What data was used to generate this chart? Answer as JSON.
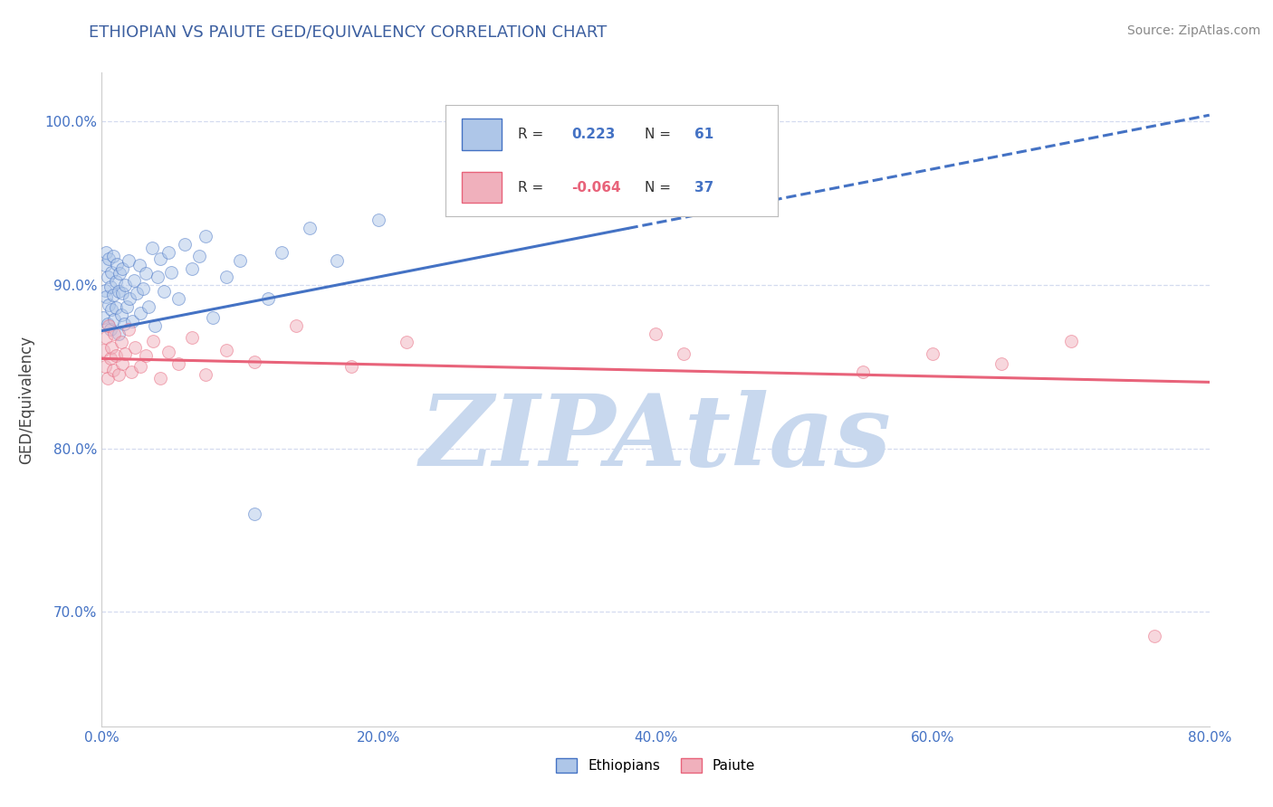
{
  "title": "ETHIOPIAN VS PAIUTE GED/EQUIVALENCY CORRELATION CHART",
  "source_text": "Source: ZipAtlas.com",
  "xlabel": "",
  "ylabel": "GED/Equivalency",
  "xlim": [
    0.0,
    0.8
  ],
  "ylim": [
    0.63,
    1.03
  ],
  "yticks": [
    0.7,
    0.8,
    0.9,
    1.0
  ],
  "ytick_labels": [
    "70.0%",
    "80.0%",
    "90.0%",
    "100.0%"
  ],
  "xticks": [
    0.0,
    0.2,
    0.4,
    0.6,
    0.8
  ],
  "xtick_labels": [
    "0.0%",
    "20.0%",
    "40.0%",
    "60.0%",
    "80.0%"
  ],
  "title_color": "#3c5fa0",
  "title_fontsize": 13,
  "axis_color": "#4472c4",
  "watermark_text": "ZIPAtlas",
  "watermark_color": "#c8d8ee",
  "legend_r_ethiopian": "0.223",
  "legend_n_ethiopian": "61",
  "legend_r_paiute": "-0.064",
  "legend_n_paiute": "37",
  "blue_color": "#4472c4",
  "pink_color": "#e8637a",
  "blue_fill_color": "#aec6e8",
  "pink_fill_color": "#f0b0bc",
  "background_color": "#ffffff",
  "grid_color": "#d0d8ee",
  "scatter_size": 100,
  "scatter_alpha": 0.5,
  "line_width": 2.2,
  "blue_line_intercept": 0.872,
  "blue_line_slope": 0.165,
  "pink_line_intercept": 0.855,
  "pink_line_slope": -0.018,
  "ethiopian_x": [
    0.001,
    0.002,
    0.002,
    0.003,
    0.003,
    0.004,
    0.004,
    0.005,
    0.005,
    0.006,
    0.006,
    0.007,
    0.007,
    0.008,
    0.008,
    0.009,
    0.01,
    0.01,
    0.011,
    0.012,
    0.012,
    0.013,
    0.014,
    0.015,
    0.015,
    0.016,
    0.017,
    0.018,
    0.019,
    0.02,
    0.022,
    0.023,
    0.025,
    0.027,
    0.028,
    0.03,
    0.032,
    0.034,
    0.036,
    0.038,
    0.04,
    0.042,
    0.045,
    0.048,
    0.05,
    0.055,
    0.06,
    0.065,
    0.07,
    0.075,
    0.08,
    0.09,
    0.1,
    0.11,
    0.12,
    0.13,
    0.15,
    0.17,
    0.2,
    0.28,
    0.38
  ],
  "ethiopian_y": [
    0.88,
    0.897,
    0.912,
    0.893,
    0.92,
    0.876,
    0.905,
    0.888,
    0.916,
    0.899,
    0.873,
    0.908,
    0.885,
    0.894,
    0.918,
    0.879,
    0.902,
    0.886,
    0.913,
    0.896,
    0.87,
    0.907,
    0.882,
    0.895,
    0.91,
    0.876,
    0.9,
    0.887,
    0.915,
    0.892,
    0.878,
    0.903,
    0.895,
    0.912,
    0.883,
    0.898,
    0.907,
    0.887,
    0.923,
    0.875,
    0.905,
    0.916,
    0.896,
    0.92,
    0.908,
    0.892,
    0.925,
    0.91,
    0.918,
    0.93,
    0.88,
    0.905,
    0.915,
    0.76,
    0.892,
    0.92,
    0.935,
    0.915,
    0.94,
    0.955,
    0.95
  ],
  "paiute_x": [
    0.001,
    0.002,
    0.003,
    0.004,
    0.005,
    0.006,
    0.007,
    0.008,
    0.009,
    0.01,
    0.012,
    0.014,
    0.015,
    0.017,
    0.019,
    0.021,
    0.024,
    0.028,
    0.032,
    0.037,
    0.042,
    0.048,
    0.055,
    0.065,
    0.075,
    0.09,
    0.11,
    0.14,
    0.18,
    0.22,
    0.4,
    0.42,
    0.55,
    0.6,
    0.65,
    0.7,
    0.76
  ],
  "paiute_y": [
    0.86,
    0.85,
    0.868,
    0.843,
    0.875,
    0.855,
    0.862,
    0.848,
    0.87,
    0.857,
    0.845,
    0.865,
    0.852,
    0.858,
    0.873,
    0.847,
    0.862,
    0.85,
    0.857,
    0.866,
    0.843,
    0.859,
    0.852,
    0.868,
    0.845,
    0.86,
    0.853,
    0.875,
    0.85,
    0.865,
    0.87,
    0.858,
    0.847,
    0.858,
    0.852,
    0.866,
    0.685
  ]
}
